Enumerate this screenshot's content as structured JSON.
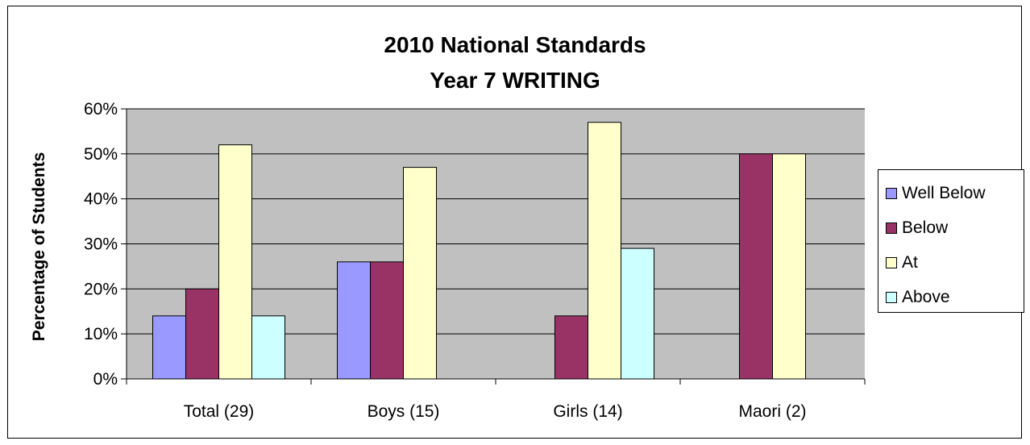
{
  "chart_data": {
    "type": "bar",
    "title": [
      "2010 National Standards",
      "Year 7 WRITING"
    ],
    "xlabel": "",
    "ylabel": "Percentage of Students",
    "ylim": [
      0,
      60
    ],
    "ytick_labels": [
      "0%",
      "10%",
      "20%",
      "30%",
      "40%",
      "50%",
      "60%"
    ],
    "categories": [
      "Total (29)",
      "Boys (15)",
      "Girls (14)",
      "Maori (2)"
    ],
    "series": [
      {
        "name": "Well Below",
        "color": "#9999FF",
        "values": [
          14,
          26,
          0,
          0
        ]
      },
      {
        "name": "Below",
        "color": "#993366",
        "values": [
          20,
          26,
          14,
          50
        ]
      },
      {
        "name": "At",
        "color": "#FFFFCC",
        "values": [
          52,
          47,
          57,
          50
        ]
      },
      {
        "name": "Above",
        "color": "#CCFFFF",
        "values": [
          14,
          0,
          29,
          0
        ]
      }
    ],
    "grid": true,
    "plot_background": "#C0C0C0",
    "legend_position": "right"
  }
}
